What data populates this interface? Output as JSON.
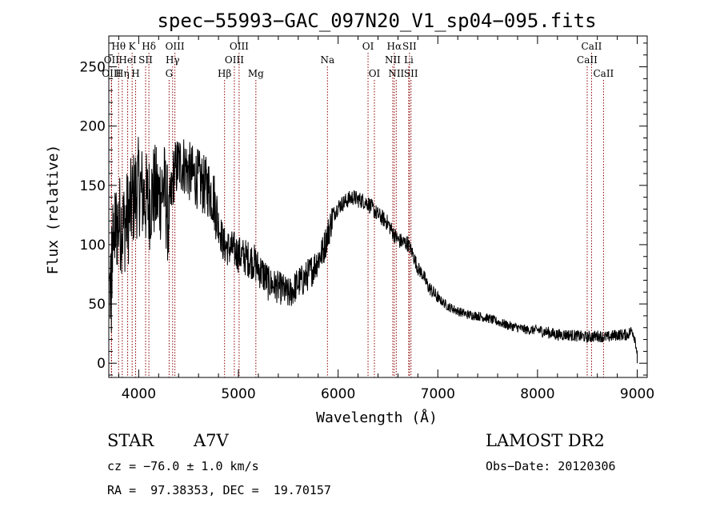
{
  "chart_data": {
    "type": "line",
    "title": "spec−55993−GAC_097N20_V1_sp04−095.fits",
    "xlabel": "Wavelength (Å)",
    "ylabel": "Flux (relative)",
    "xlim": [
      3700,
      9100
    ],
    "ylim": [
      -12,
      276
    ],
    "xticks": [
      4000,
      5000,
      6000,
      7000,
      8000,
      9000
    ],
    "yticks": [
      0,
      50,
      100,
      150,
      200,
      250
    ],
    "grid": false,
    "legend": "none",
    "line_color": "#000000",
    "marker_color": "#8b0000",
    "envelope": [
      [
        3710,
        60
      ],
      [
        3750,
        110
      ],
      [
        3800,
        120
      ],
      [
        3850,
        115
      ],
      [
        3900,
        125
      ],
      [
        3950,
        140
      ],
      [
        4000,
        150
      ],
      [
        4050,
        140
      ],
      [
        4100,
        135
      ],
      [
        4150,
        145
      ],
      [
        4200,
        140
      ],
      [
        4250,
        150
      ],
      [
        4300,
        120
      ],
      [
        4350,
        160
      ],
      [
        4400,
        168
      ],
      [
        4450,
        168
      ],
      [
        4500,
        162
      ],
      [
        4550,
        158
      ],
      [
        4600,
        155
      ],
      [
        4650,
        150
      ],
      [
        4700,
        148
      ],
      [
        4750,
        140
      ],
      [
        4800,
        118
      ],
      [
        4850,
        100
      ],
      [
        4900,
        97
      ],
      [
        4950,
        96
      ],
      [
        5000,
        92
      ],
      [
        5050,
        90
      ],
      [
        5100,
        88
      ],
      [
        5150,
        86
      ],
      [
        5200,
        80
      ],
      [
        5250,
        75
      ],
      [
        5300,
        68
      ],
      [
        5350,
        66
      ],
      [
        5400,
        64
      ],
      [
        5450,
        62
      ],
      [
        5500,
        58
      ],
      [
        5550,
        62
      ],
      [
        5600,
        68
      ],
      [
        5650,
        70
      ],
      [
        5700,
        75
      ],
      [
        5750,
        80
      ],
      [
        5800,
        88
      ],
      [
        5850,
        95
      ],
      [
        5900,
        110
      ],
      [
        5950,
        125
      ],
      [
        6000,
        132
      ],
      [
        6050,
        135
      ],
      [
        6100,
        138
      ],
      [
        6150,
        140
      ],
      [
        6200,
        138
      ],
      [
        6250,
        137
      ],
      [
        6300,
        135
      ],
      [
        6350,
        130
      ],
      [
        6400,
        125
      ],
      [
        6450,
        122
      ],
      [
        6500,
        118
      ],
      [
        6550,
        110
      ],
      [
        6600,
        104
      ],
      [
        6650,
        102
      ],
      [
        6700,
        101
      ],
      [
        6750,
        92
      ],
      [
        6800,
        80
      ],
      [
        6850,
        75
      ],
      [
        6900,
        65
      ],
      [
        6950,
        60
      ],
      [
        7000,
        55
      ],
      [
        7100,
        48
      ],
      [
        7200,
        44
      ],
      [
        7300,
        41
      ],
      [
        7400,
        40
      ],
      [
        7500,
        38
      ],
      [
        7600,
        35
      ],
      [
        7700,
        32
      ],
      [
        7800,
        30
      ],
      [
        7900,
        28
      ],
      [
        8000,
        28
      ],
      [
        8100,
        26
      ],
      [
        8200,
        24
      ],
      [
        8300,
        24
      ],
      [
        8400,
        23
      ],
      [
        8500,
        22
      ],
      [
        8600,
        23
      ],
      [
        8700,
        22
      ],
      [
        8800,
        24
      ],
      [
        8900,
        24
      ],
      [
        8950,
        28
      ],
      [
        8980,
        20
      ],
      [
        9000,
        8
      ]
    ],
    "lines": [
      {
        "label": "Hθ",
        "wave": 3798,
        "row": 0
      },
      {
        "label": "OII",
        "wave": 3727,
        "row": 1
      },
      {
        "label": "OIII",
        "wave": 3727,
        "row": 2
      },
      {
        "label": "K",
        "wave": 3934,
        "row": 0
      },
      {
        "label": "HeI",
        "wave": 3889,
        "row": 1
      },
      {
        "label": "Hη",
        "wave": 3835,
        "row": 2
      },
      {
        "label": "H",
        "wave": 3969,
        "row": 2
      },
      {
        "label": "SII",
        "wave": 4069,
        "row": 1
      },
      {
        "label": "Hδ",
        "wave": 4102,
        "row": 0
      },
      {
        "label": "OIII",
        "wave": 4363,
        "row": 0
      },
      {
        "label": "Hγ",
        "wave": 4340,
        "row": 1
      },
      {
        "label": "G",
        "wave": 4305,
        "row": 2
      },
      {
        "label": "Hβ",
        "wave": 4861,
        "row": 2
      },
      {
        "label": "OIII",
        "wave": 5007,
        "row": 0
      },
      {
        "label": "OIII",
        "wave": 4959,
        "row": 1
      },
      {
        "label": "Mg",
        "wave": 5175,
        "row": 2
      },
      {
        "label": "Na",
        "wave": 5893,
        "row": 1
      },
      {
        "label": "OI",
        "wave": 6300,
        "row": 0
      },
      {
        "label": "OI",
        "wave": 6364,
        "row": 2
      },
      {
        "label": "Hα",
        "wave": 6563,
        "row": 0
      },
      {
        "label": "NII",
        "wave": 6548,
        "row": 1
      },
      {
        "label": "NII",
        "wave": 6583,
        "row": 2
      },
      {
        "label": "SII",
        "wave": 6716,
        "row": 0
      },
      {
        "label": "Li",
        "wave": 6708,
        "row": 1
      },
      {
        "label": "SII",
        "wave": 6731,
        "row": 2
      },
      {
        "label": "CaII",
        "wave": 8542,
        "row": 0
      },
      {
        "label": "CaII",
        "wave": 8498,
        "row": 1
      },
      {
        "label": "CaII",
        "wave": 8662,
        "row": 2
      }
    ]
  },
  "info": {
    "object_class": "STAR",
    "subclass": "A7V",
    "survey": "LAMOST DR2",
    "cz": "cz = −76.0 ± 1.0 km/s",
    "obs_date": "Obs−Date: 20120306",
    "coords": "RA =  97.38353, DEC =  19.70157"
  }
}
